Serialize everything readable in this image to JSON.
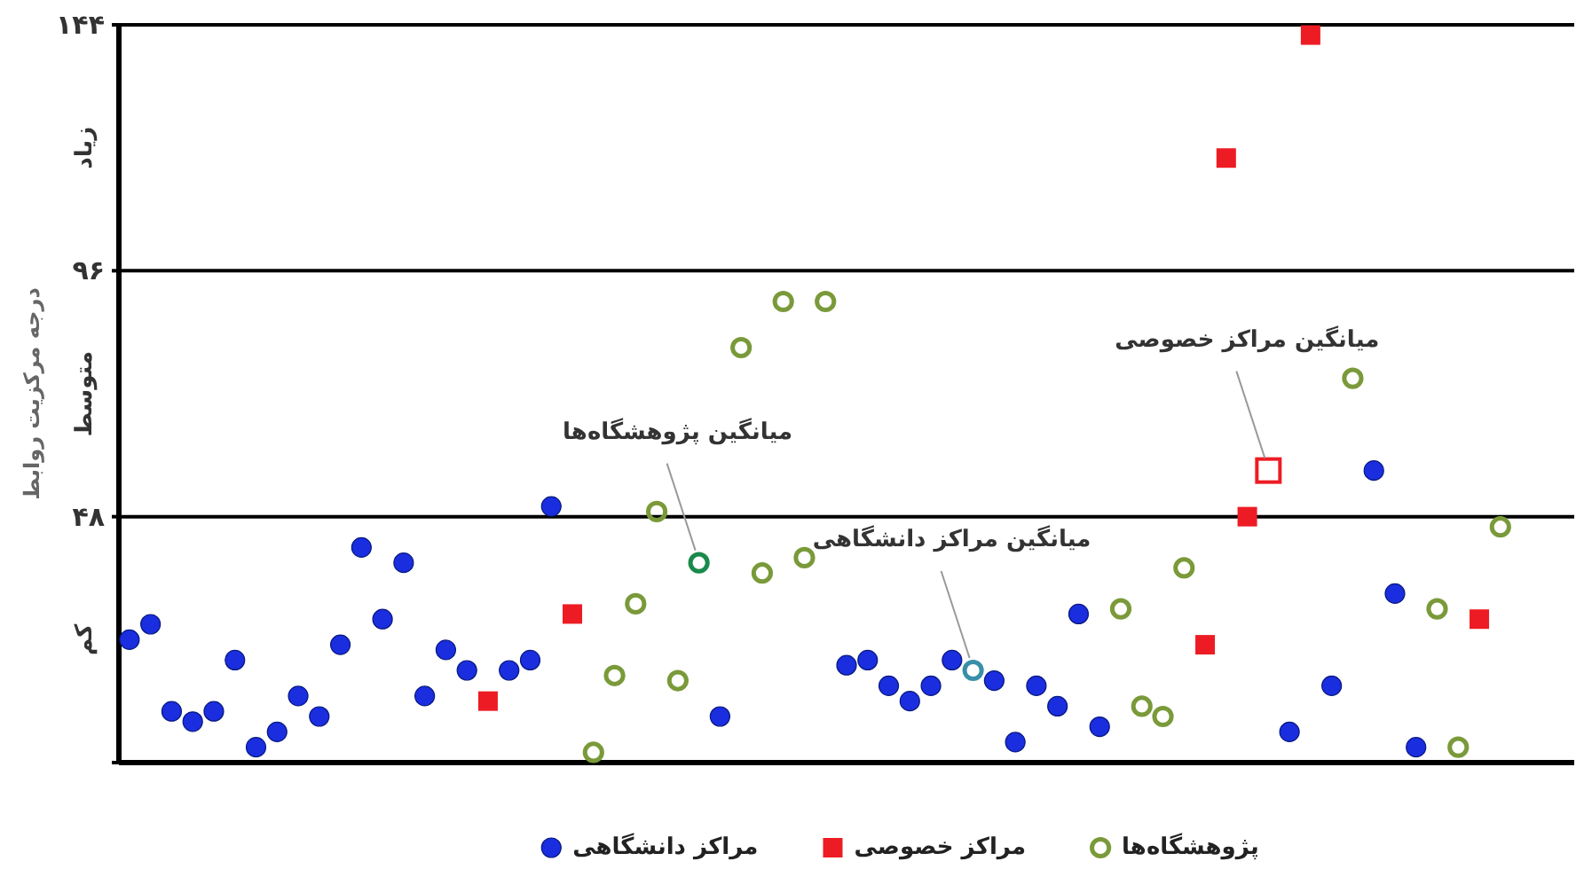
{
  "chart_data": {
    "type": "scatter",
    "ylabel": "درجه مرکزیت روابط",
    "ylim": [
      0,
      144
    ],
    "yticks": [
      {
        "value": 0,
        "label": null
      },
      {
        "value": 48,
        "label": "۴۸"
      },
      {
        "value": 96,
        "label": "۹۶"
      },
      {
        "value": 144,
        "label": "۱۴۴"
      }
    ],
    "grid": "y",
    "legend": "bottom",
    "annotations": [
      "کم",
      "متوسط",
      "زیاد"
    ],
    "categories": [
      null,
      null,
      null,
      null,
      null,
      null,
      null,
      null,
      null,
      null,
      null,
      null,
      null,
      null,
      null,
      null,
      null,
      null,
      null,
      null,
      null,
      null,
      null,
      null,
      null,
      null,
      null,
      null,
      null,
      null,
      null,
      null,
      null,
      null,
      null,
      null,
      null,
      null,
      null,
      null,
      null,
      null,
      null,
      null,
      null,
      null,
      null,
      null,
      null,
      null,
      null,
      null,
      null,
      null,
      null,
      null,
      null,
      null,
      null,
      null,
      null,
      null,
      null,
      null,
      null,
      null,
      null,
      null,
      null
    ],
    "series": [
      {
        "name": "مراکز دانشگاهی",
        "color": "#1a2ee0",
        "marker": "circle",
        "values": [
          24,
          27,
          10,
          8,
          10,
          20,
          3,
          6,
          13,
          9,
          23,
          42,
          28,
          39,
          13,
          22,
          18,
          null,
          18,
          20,
          50,
          null,
          null,
          null,
          null,
          null,
          null,
          null,
          9,
          null,
          null,
          null,
          null,
          null,
          19,
          20,
          15,
          12,
          15,
          20,
          null,
          16,
          4,
          15,
          11,
          29,
          7,
          null,
          null,
          null,
          null,
          null,
          null,
          null,
          null,
          6,
          null,
          15,
          null,
          57,
          33,
          3,
          null,
          null,
          null,
          null,
          null,
          null,
          null
        ]
      },
      {
        "name": "مراکز خصوصی",
        "color": "#ed1c24",
        "marker": "square",
        "values": [
          null,
          null,
          null,
          null,
          null,
          null,
          null,
          null,
          null,
          null,
          null,
          null,
          null,
          null,
          null,
          null,
          null,
          12,
          null,
          null,
          null,
          29,
          null,
          null,
          null,
          null,
          null,
          null,
          null,
          null,
          null,
          null,
          null,
          null,
          null,
          null,
          null,
          null,
          null,
          null,
          null,
          null,
          null,
          null,
          null,
          null,
          null,
          null,
          null,
          null,
          null,
          23,
          118,
          48,
          null,
          null,
          142,
          null,
          null,
          null,
          null,
          null,
          null,
          null,
          28,
          null,
          null,
          null,
          null
        ]
      },
      {
        "name": "پژوهشگاه‌ها",
        "color": "#7a9a3a",
        "marker": "circle",
        "values": [
          null,
          null,
          null,
          null,
          null,
          null,
          null,
          null,
          null,
          null,
          null,
          null,
          null,
          null,
          null,
          null,
          null,
          null,
          null,
          null,
          null,
          null,
          2,
          17,
          31,
          49,
          16,
          null,
          null,
          81,
          37,
          90,
          40,
          90,
          null,
          null,
          null,
          null,
          null,
          null,
          null,
          null,
          null,
          null,
          null,
          null,
          null,
          30,
          11,
          9,
          38,
          null,
          null,
          null,
          null,
          null,
          null,
          null,
          75,
          null,
          null,
          null,
          30,
          3,
          null,
          46,
          null,
          null,
          null
        ]
      },
      {
        "name": "میانگین پژوهشگاه‌ها",
        "color": "#1a8a4a",
        "marker": "circle",
        "values": [
          null,
          null,
          null,
          null,
          null,
          null,
          null,
          null,
          null,
          null,
          null,
          null,
          null,
          null,
          null,
          null,
          null,
          null,
          null,
          null,
          null,
          null,
          null,
          null,
          null,
          null,
          null,
          39,
          null,
          null,
          null,
          null,
          null,
          null,
          null,
          null,
          null,
          null,
          null,
          null,
          null,
          null,
          null,
          null,
          null,
          null,
          null,
          null,
          null,
          null,
          null,
          null,
          null,
          null,
          null,
          null,
          null,
          null,
          null,
          null,
          null,
          null,
          null,
          null,
          null,
          null,
          null,
          null,
          null
        ]
      },
      {
        "name": "میانگین مراکز دانشگاهی",
        "color": "#3a8fa8",
        "marker": "circle",
        "values": [
          null,
          null,
          null,
          null,
          null,
          null,
          null,
          null,
          null,
          null,
          null,
          null,
          null,
          null,
          null,
          null,
          null,
          null,
          null,
          null,
          null,
          null,
          null,
          null,
          null,
          null,
          null,
          null,
          null,
          null,
          null,
          null,
          null,
          null,
          null,
          null,
          null,
          null,
          null,
          null,
          18,
          null,
          null,
          null,
          null,
          null,
          null,
          null,
          null,
          null,
          null,
          null,
          null,
          null,
          null,
          null,
          null,
          null,
          null,
          null,
          null,
          null,
          null,
          null,
          null,
          null,
          null,
          null,
          null
        ]
      },
      {
        "name": "میانگین مراکز خصوصی",
        "color": "#ed1c24",
        "marker": "square",
        "values": [
          null,
          null,
          null,
          null,
          null,
          null,
          null,
          null,
          null,
          null,
          null,
          null,
          null,
          null,
          null,
          null,
          null,
          null,
          null,
          null,
          null,
          null,
          null,
          null,
          null,
          null,
          null,
          null,
          null,
          null,
          null,
          null,
          null,
          null,
          null,
          null,
          null,
          null,
          null,
          null,
          null,
          null,
          null,
          null,
          null,
          null,
          null,
          null,
          null,
          null,
          null,
          null,
          null,
          null,
          57,
          null,
          null,
          null,
          null,
          null,
          null,
          null,
          null,
          null,
          null,
          null,
          null,
          null,
          null
        ]
      }
    ]
  }
}
